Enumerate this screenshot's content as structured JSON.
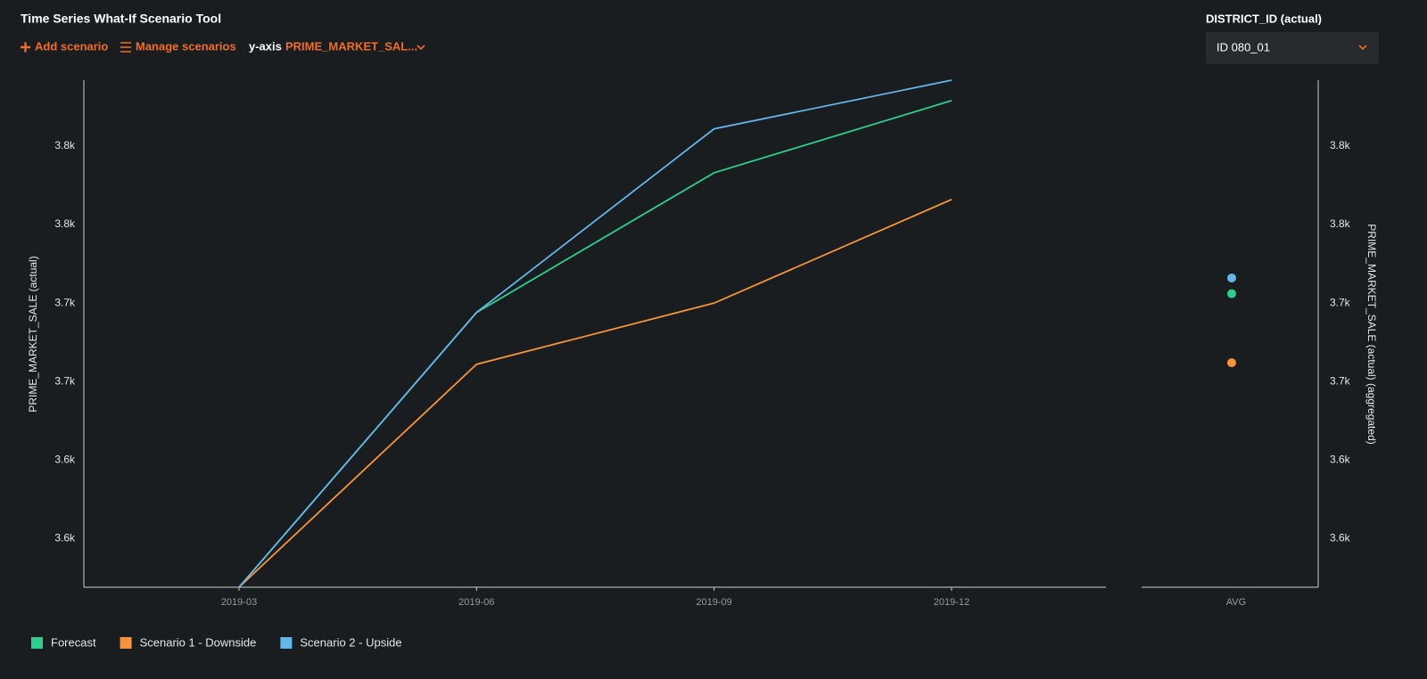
{
  "header": {
    "title": "Time Series What-If Scenario Tool",
    "add_scenario": "Add scenario",
    "manage_scenarios": "Manage scenarios",
    "y_axis_label": "y-axis",
    "y_axis_value": "PRIME_MARKET_SAL...",
    "filter_label": "DISTRICT_ID (actual)",
    "filter_value": "ID 080_01"
  },
  "chart_data": {
    "type": "line",
    "y_label": "PRIME_MARKET_SALE (actual)",
    "y2_label": "PRIME_MARKET_SALE (actual) (aggregated)",
    "categories": [
      "2019-03",
      "2019-06",
      "2019-09",
      "2019-12"
    ],
    "avg_category": "AVG",
    "series": [
      {
        "name": "Forecast",
        "color": "#2ecf8e",
        "values": [
          3544,
          3719,
          3808,
          3854
        ],
        "avg": 3731
      },
      {
        "name": "Scenario 1 - Downside",
        "color": "#f7943a",
        "values": [
          3544,
          3686,
          3725,
          3791
        ],
        "avg": 3687
      },
      {
        "name": "Scenario 2 - Upside",
        "color": "#63b6ea",
        "values": [
          3544,
          3719,
          3836,
          3867
        ],
        "avg": 3741
      }
    ],
    "ylim": [
      3544,
      3867
    ],
    "yticks": [
      {
        "value": 3575,
        "label": "3.6k"
      },
      {
        "value": 3625,
        "label": "3.6k"
      },
      {
        "value": 3675,
        "label": "3.7k"
      },
      {
        "value": 3725,
        "label": "3.7k"
      },
      {
        "value": 3775,
        "label": "3.8k"
      },
      {
        "value": 3825,
        "label": "3.8k"
      }
    ],
    "y2lim": [
      3544,
      3867
    ],
    "y2ticks": [
      {
        "value": 3575,
        "label": "3.6k"
      },
      {
        "value": 3625,
        "label": "3.6k"
      },
      {
        "value": 3675,
        "label": "3.7k"
      },
      {
        "value": 3725,
        "label": "3.7k"
      },
      {
        "value": 3775,
        "label": "3.8k"
      },
      {
        "value": 3825,
        "label": "3.8k"
      }
    ]
  }
}
